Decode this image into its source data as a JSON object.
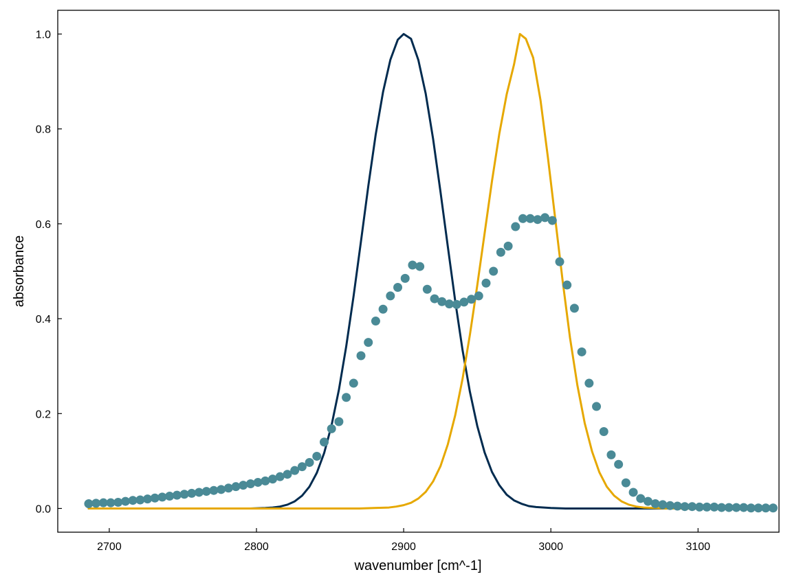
{
  "chart_data": {
    "type": "line",
    "xlabel": "wavenumber [cm^-1]",
    "ylabel": "absorbance",
    "xlim": [
      2665,
      3155
    ],
    "ylim": [
      -0.05,
      1.05
    ],
    "xticks": [
      2700,
      2800,
      2900,
      3000,
      3100
    ],
    "yticks": [
      0.0,
      0.2,
      0.4,
      0.6,
      0.8,
      1.0
    ],
    "ytick_labels": [
      "0.0",
      "0.2",
      "0.4",
      "0.6",
      "0.8",
      "1.0"
    ],
    "grid": false,
    "series": [
      {
        "style": "line",
        "color": "#002b4f",
        "x": [
          2686,
          2696,
          2706,
          2716,
          2726,
          2736,
          2746,
          2756,
          2766,
          2776,
          2786,
          2796,
          2806,
          2811,
          2816,
          2821,
          2826,
          2831,
          2836,
          2841,
          2846,
          2851,
          2856,
          2861,
          2866,
          2871,
          2876,
          2881,
          2886,
          2891,
          2896,
          2900,
          2905,
          2910,
          2915,
          2920,
          2925,
          2930,
          2935,
          2940,
          2945,
          2950,
          2955,
          2960,
          2965,
          2970,
          2975,
          2980,
          2985,
          2990,
          3000,
          3010,
          3030,
          3050,
          3070,
          3100,
          3150
        ],
        "y": [
          0,
          0,
          0,
          0,
          0,
          0,
          0,
          0,
          0,
          0,
          0,
          0,
          0.001,
          0.002,
          0.004,
          0.008,
          0.015,
          0.027,
          0.046,
          0.075,
          0.117,
          0.175,
          0.25,
          0.342,
          0.448,
          0.563,
          0.68,
          0.788,
          0.878,
          0.946,
          0.988,
          1.0,
          0.99,
          0.945,
          0.874,
          0.779,
          0.668,
          0.552,
          0.438,
          0.334,
          0.246,
          0.174,
          0.118,
          0.077,
          0.049,
          0.029,
          0.017,
          0.01,
          0.005,
          0.003,
          0.001,
          0,
          0,
          0,
          0,
          0,
          0
        ]
      },
      {
        "style": "line",
        "color": "#e6a800",
        "x": [
          2686,
          2750,
          2800,
          2850,
          2870,
          2880,
          2890,
          2895,
          2900,
          2905,
          2910,
          2915,
          2920,
          2925,
          2930,
          2935,
          2940,
          2945,
          2950,
          2955,
          2960,
          2965,
          2970,
          2975,
          2979,
          2983,
          2988,
          2993,
          2998,
          3003,
          3008,
          3013,
          3018,
          3023,
          3028,
          3033,
          3038,
          3043,
          3048,
          3053,
          3058,
          3063,
          3070,
          3080,
          3100,
          3150
        ],
        "y": [
          0,
          0,
          0,
          0,
          0,
          0.001,
          0.002,
          0.004,
          0.007,
          0.012,
          0.021,
          0.035,
          0.057,
          0.089,
          0.135,
          0.196,
          0.273,
          0.366,
          0.47,
          0.58,
          0.69,
          0.79,
          0.873,
          0.936,
          1.0,
          0.99,
          0.95,
          0.86,
          0.74,
          0.61,
          0.48,
          0.36,
          0.26,
          0.18,
          0.12,
          0.076,
          0.046,
          0.027,
          0.015,
          0.008,
          0.004,
          0.002,
          0.001,
          0,
          0,
          0
        ]
      },
      {
        "style": "scatter",
        "color": "#4a8a96",
        "x": [
          2686,
          2691,
          2696,
          2701,
          2706,
          2711,
          2716,
          2721,
          2726,
          2731,
          2736,
          2741,
          2746,
          2751,
          2756,
          2761,
          2766,
          2771,
          2776,
          2781,
          2786,
          2791,
          2796,
          2801,
          2806,
          2811,
          2816,
          2821,
          2826,
          2831,
          2836,
          2841,
          2846,
          2851,
          2856,
          2861,
          2866,
          2871,
          2876,
          2881,
          2886,
          2891,
          2896,
          2901,
          2906,
          2911,
          2916,
          2921,
          2926,
          2931,
          2936,
          2941,
          2946,
          2951,
          2956,
          2961,
          2966,
          2971,
          2976,
          2981,
          2986,
          2991,
          2996,
          3001,
          3006,
          3011,
          3016,
          3021,
          3026,
          3031,
          3036,
          3041,
          3046,
          3051,
          3056,
          3061,
          3066,
          3071,
          3076,
          3081,
          3086,
          3091,
          3096,
          3101,
          3106,
          3111,
          3116,
          3121,
          3126,
          3131,
          3136,
          3141,
          3146,
          3151
        ],
        "y": [
          0.01,
          0.011,
          0.012,
          0.012,
          0.013,
          0.015,
          0.017,
          0.018,
          0.02,
          0.022,
          0.024,
          0.026,
          0.028,
          0.03,
          0.032,
          0.034,
          0.036,
          0.038,
          0.04,
          0.043,
          0.046,
          0.049,
          0.052,
          0.055,
          0.058,
          0.062,
          0.067,
          0.072,
          0.08,
          0.088,
          0.097,
          0.11,
          0.14,
          0.168,
          0.183,
          0.234,
          0.264,
          0.322,
          0.35,
          0.395,
          0.42,
          0.448,
          0.466,
          0.485,
          0.513,
          0.51,
          0.462,
          0.442,
          0.436,
          0.431,
          0.43,
          0.435,
          0.441,
          0.448,
          0.475,
          0.5,
          0.54,
          0.553,
          0.594,
          0.611,
          0.611,
          0.609,
          0.613,
          0.607,
          0.52,
          0.471,
          0.422,
          0.33,
          0.264,
          0.215,
          0.162,
          0.113,
          0.093,
          0.054,
          0.034,
          0.021,
          0.015,
          0.01,
          0.008,
          0.006,
          0.005,
          0.004,
          0.004,
          0.003,
          0.003,
          0.003,
          0.002,
          0.002,
          0.002,
          0.002,
          0.001,
          0.001,
          0.001,
          0.001
        ]
      }
    ]
  }
}
